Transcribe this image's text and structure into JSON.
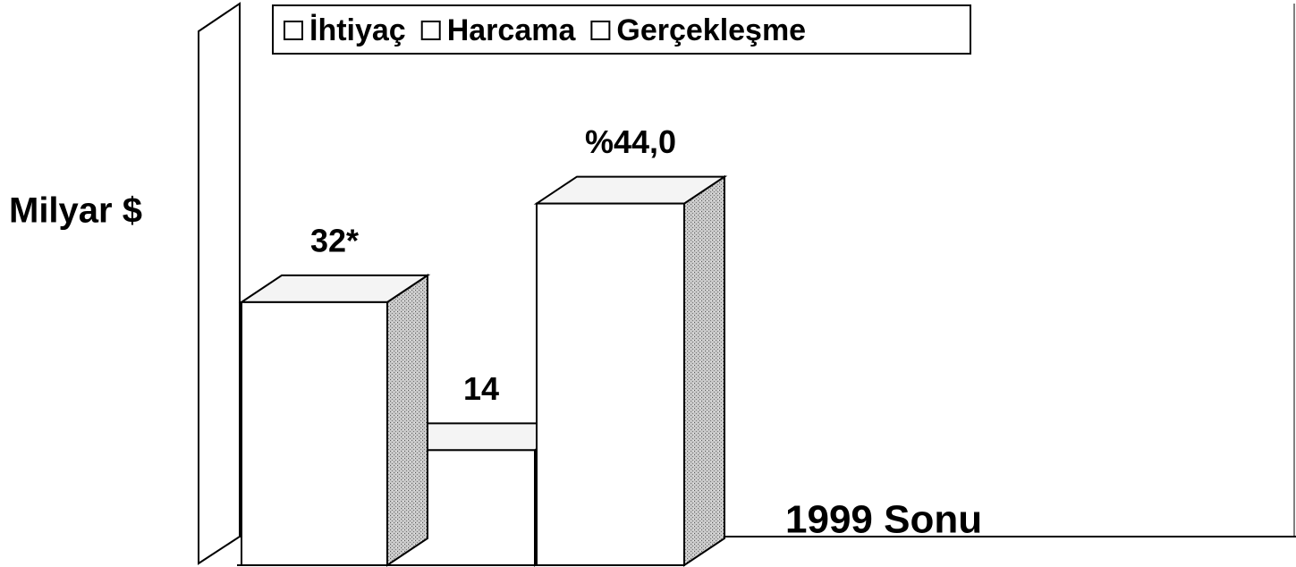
{
  "chart_data": {
    "type": "bar3d",
    "ylabel": "Milyar $",
    "categories": [
      "1999 Sonu"
    ],
    "series": [
      {
        "name": "İhtiyaç",
        "color": "#ffffff",
        "values": [
          32
        ],
        "value_labels": [
          "32*"
        ]
      },
      {
        "name": "Harcama",
        "color": "#ffffff",
        "values": [
          14
        ],
        "value_labels": [
          "14"
        ]
      },
      {
        "name": "Gerçekleşme",
        "color": "#ffffff",
        "values": [
          44
        ],
        "value_labels": [
          "%44,0"
        ]
      }
    ],
    "ylim": [
      0,
      68
    ],
    "legend": "top"
  }
}
